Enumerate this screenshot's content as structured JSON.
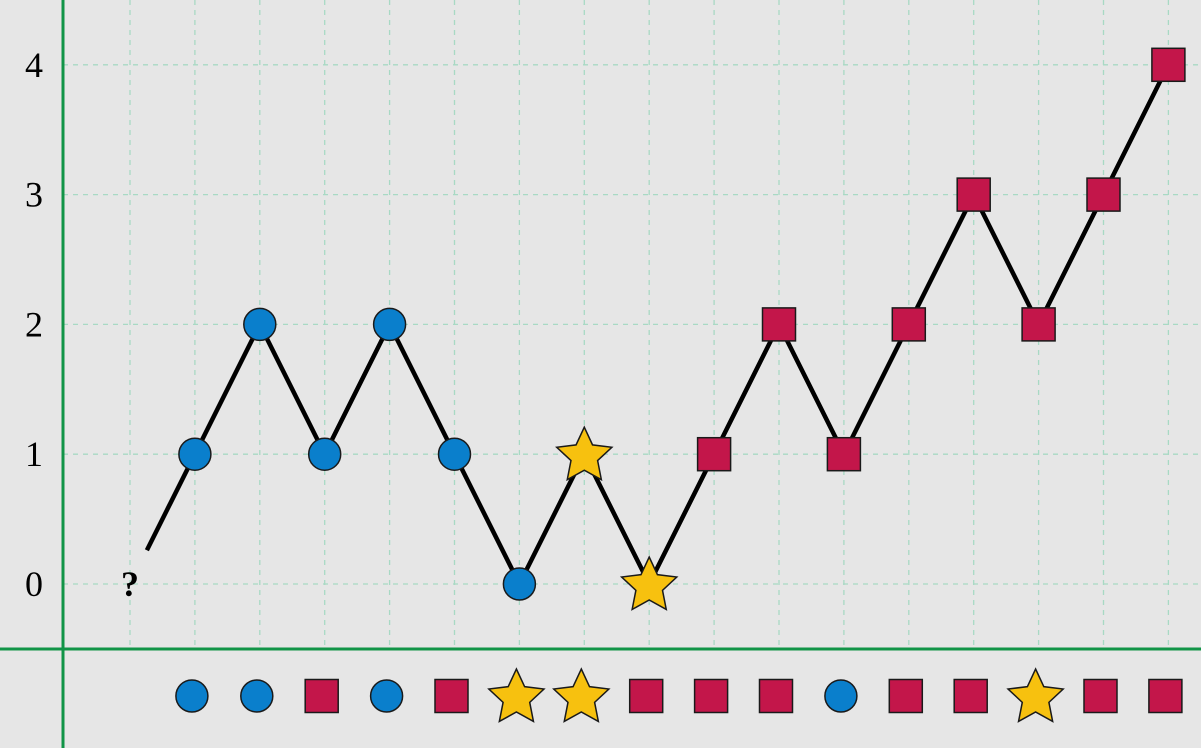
{
  "chart_data": {
    "type": "line",
    "title": "",
    "xlabel": "",
    "ylabel": "",
    "y_ticks": [
      "0",
      "1",
      "2",
      "3",
      "4"
    ],
    "ylim": [
      0,
      4
    ],
    "grid": true,
    "start_label": "?",
    "x": [
      1,
      2,
      3,
      4,
      5,
      6,
      7,
      8,
      9,
      10,
      11,
      12,
      13,
      14,
      15,
      16
    ],
    "values": [
      1,
      2,
      1,
      2,
      1,
      0,
      1,
      0,
      1,
      2,
      1,
      2,
      3,
      2,
      3,
      4
    ],
    "marker_at_point": [
      "circle",
      "circle",
      "circle",
      "circle",
      "circle",
      "circle",
      "star",
      "star",
      "square",
      "square",
      "square",
      "square",
      "square",
      "square",
      "square",
      "square"
    ],
    "bottom_sequence": [
      "circle",
      "circle",
      "square",
      "circle",
      "square",
      "star",
      "star",
      "square",
      "square",
      "square",
      "circle",
      "square",
      "square",
      "star",
      "square",
      "square"
    ],
    "marker_colors": {
      "circle": "#0a7fcc",
      "square": "#c3164a",
      "star": "#f7c10f"
    },
    "colors": {
      "background": "#e6e6e6",
      "axis": "#119447",
      "grid": "#a8d9c4",
      "line": "#000000"
    }
  }
}
